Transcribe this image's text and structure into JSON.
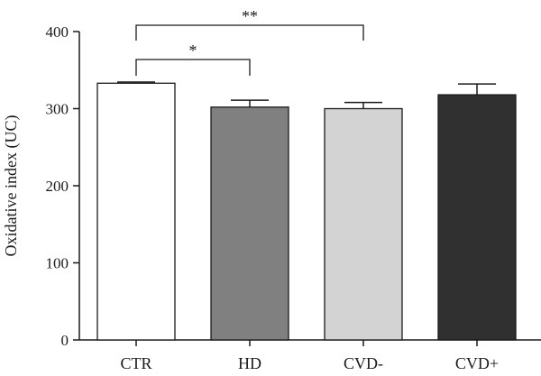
{
  "chart_data": {
    "type": "bar",
    "title": "",
    "xlabel": "",
    "ylabel": "Oxidative index (UC)",
    "ylim": [
      0,
      400
    ],
    "yticks": [
      0,
      100,
      200,
      300,
      400
    ],
    "categories": [
      "CTR",
      "HD",
      "CVD-",
      "CVD+"
    ],
    "values": [
      333,
      302,
      300,
      318
    ],
    "errors": [
      1.5,
      9,
      8,
      14
    ],
    "bar_colors": [
      "#ffffff",
      "#808080",
      "#d3d3d3",
      "#303030"
    ],
    "grid": false,
    "legend": "none",
    "significance": [
      {
        "from": "CTR",
        "to": "HD",
        "label": "*"
      },
      {
        "from": "CTR",
        "to": "CVD-",
        "label": "**"
      }
    ]
  }
}
